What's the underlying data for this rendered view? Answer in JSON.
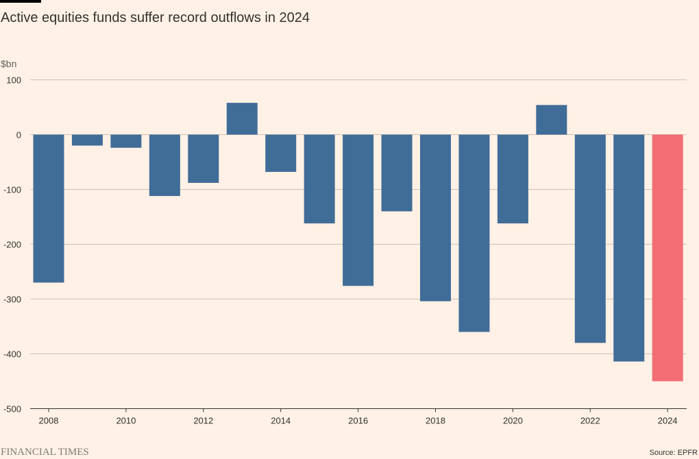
{
  "accent_bar_color": "#000000",
  "chart_data": {
    "type": "bar",
    "title": "Active equities funds suffer record outflows in 2024",
    "ylabel": "$bn",
    "xlabel": "",
    "categories": [
      "2008",
      "2009",
      "2010",
      "2011",
      "2012",
      "2013",
      "2014",
      "2015",
      "2016",
      "2017",
      "2018",
      "2019",
      "2020",
      "2021",
      "2022",
      "2023",
      "2024"
    ],
    "values": [
      -270,
      -20,
      -24,
      -112,
      -88,
      58,
      -68,
      -162,
      -276,
      -140,
      -304,
      -360,
      -162,
      54,
      -380,
      -414,
      -450
    ],
    "x_tick_labels": [
      "2008",
      "2010",
      "2012",
      "2014",
      "2016",
      "2018",
      "2020",
      "2022",
      "2024"
    ],
    "y_ticks": [
      100,
      0,
      -100,
      -200,
      -300,
      -400,
      -500
    ],
    "y_tick_labels": [
      "100",
      "0",
      "-100",
      "-200",
      "-300",
      "-400",
      "-500"
    ],
    "ylim": [
      -500,
      100
    ],
    "grid": true,
    "colors": {
      "default": "#406c98",
      "highlight": "#f26d74",
      "grid": "#ccc1b7",
      "baseline": "#33302e",
      "axis_text": "#33302e"
    },
    "highlight_category": "2024"
  },
  "footer": {
    "brand": "FINANCIAL TIMES",
    "source": "Source: EPFR"
  }
}
